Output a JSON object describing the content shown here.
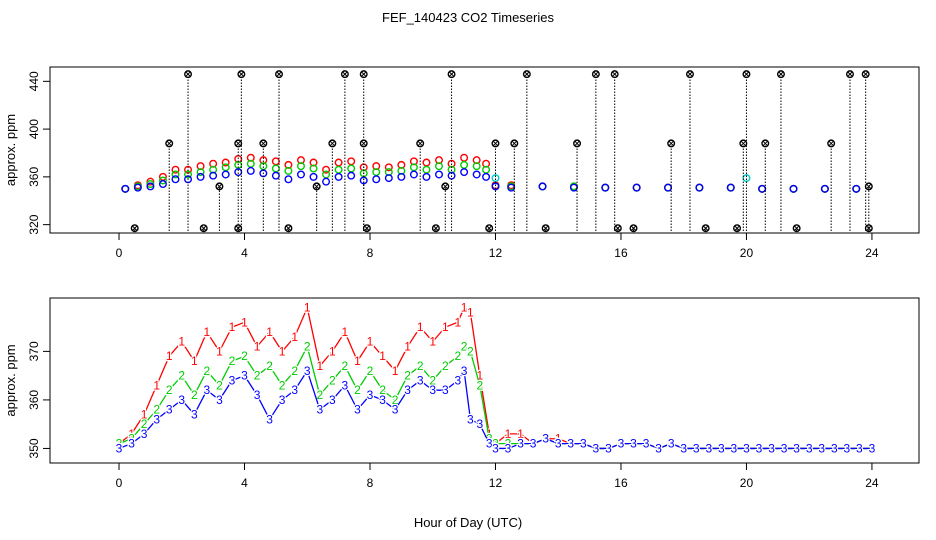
{
  "chart_data": {
    "title": "FEF_140423  CO2 Timeseries",
    "xlabel": "Hour of Day (UTC)",
    "xlim": [
      -2.2,
      25.5
    ],
    "xticks": [
      0,
      4,
      8,
      12,
      16,
      20,
      24
    ],
    "panels": [
      {
        "type": "scatter",
        "ylabel": "approx. ppm",
        "ylim": [
          313,
          452
        ],
        "yticks": [
          320,
          360,
          400,
          440
        ],
        "series": [
          {
            "color": "#ff0000",
            "marker": "circle",
            "x": [
              0.2,
              0.6,
              1.0,
              1.4,
              1.8,
              2.2,
              2.6,
              3.0,
              3.4,
              3.8,
              4.2,
              4.6,
              5.0,
              5.4,
              5.8,
              6.2,
              6.6,
              7.0,
              7.4,
              7.8,
              8.2,
              8.6,
              9.0,
              9.4,
              9.8,
              10.2,
              10.6,
              11.0,
              11.4,
              11.7,
              12.0,
              12.5,
              13.5,
              14.5,
              15.5,
              16.5,
              17.5,
              18.5,
              19.5,
              20.5,
              21.5,
              22.5,
              23.5
            ],
            "y": [
              350,
              353,
              356,
              360,
              366,
              366,
              369,
              371,
              372,
              375,
              376,
              374,
              373,
              370,
              374,
              372,
              366,
              372,
              373,
              368,
              369,
              368,
              370,
              373,
              372,
              374,
              371,
              376,
              374,
              371,
              353,
              353,
              352,
              352,
              351,
              351,
              351,
              351,
              351,
              350,
              350,
              350,
              350
            ]
          },
          {
            "color": "#00cc00",
            "marker": "circle",
            "x": [
              0.2,
              0.6,
              1.0,
              1.4,
              1.8,
              2.2,
              2.6,
              3.0,
              3.4,
              3.8,
              4.2,
              4.6,
              5.0,
              5.4,
              5.8,
              6.2,
              6.6,
              7.0,
              7.4,
              7.8,
              8.2,
              8.6,
              9.0,
              9.4,
              9.8,
              10.2,
              10.6,
              11.0,
              11.4,
              11.7,
              12.0,
              12.5,
              13.5,
              14.5,
              15.5,
              16.5,
              17.5,
              18.5,
              19.5,
              20.5,
              21.5,
              22.5,
              23.5
            ],
            "y": [
              350,
              352,
              354,
              357,
              362,
              362,
              364,
              366,
              368,
              370,
              371,
              369,
              367,
              365,
              369,
              367,
              362,
              366,
              367,
              363,
              364,
              364,
              365,
              368,
              366,
              369,
              366,
              370,
              369,
              366,
              352,
              352,
              352,
              352,
              351,
              351,
              351,
              351,
              351,
              350,
              350,
              350,
              350
            ]
          },
          {
            "color": "#0000ff",
            "marker": "circle",
            "x": [
              0.2,
              0.6,
              1.0,
              1.4,
              1.8,
              2.2,
              2.6,
              3.0,
              3.4,
              3.8,
              4.2,
              4.6,
              5.0,
              5.4,
              5.8,
              6.2,
              6.6,
              7.0,
              7.4,
              7.8,
              8.2,
              8.6,
              9.0,
              9.4,
              9.8,
              10.2,
              10.6,
              11.0,
              11.4,
              11.7,
              12.0,
              12.5,
              13.5,
              14.5,
              15.5,
              16.5,
              17.5,
              18.5,
              19.5,
              20.5,
              21.5,
              22.5,
              23.5
            ],
            "y": [
              350,
              351,
              352,
              354,
              358,
              358,
              360,
              361,
              362,
              364,
              365,
              363,
              361,
              358,
              362,
              360,
              356,
              360,
              361,
              357,
              358,
              359,
              360,
              362,
              360,
              362,
              361,
              364,
              362,
              360,
              352,
              351,
              352,
              351,
              351,
              351,
              351,
              351,
              351,
              350,
              350,
              350,
              350
            ]
          },
          {
            "color": "#00cccc",
            "marker": "circle",
            "x": [
              12.0,
              20.0
            ],
            "y": [
              359,
              359
            ]
          },
          {
            "color": "#000000",
            "marker": "circle-x",
            "x": [
              0.5,
              1.6,
              2.2,
              2.7,
              3.2,
              3.8,
              3.8,
              3.9,
              4.6,
              5.1,
              5.4,
              6.3,
              6.8,
              7.2,
              7.8,
              7.8,
              7.9,
              9.6,
              10.1,
              10.4,
              10.6,
              11.8,
              12.0,
              12.6,
              13.0,
              13.6,
              14.6,
              15.2,
              15.8,
              15.9,
              16.4,
              17.6,
              18.2,
              18.7,
              19.7,
              19.9,
              20.0,
              20.6,
              21.1,
              21.6,
              22.7,
              23.3,
              23.8,
              23.9,
              23.9
            ],
            "y": [
              317,
              388,
              446,
              317,
              352,
              317,
              388,
              446,
              388,
              446,
              317,
              352,
              388,
              446,
              446,
              388,
              317,
              388,
              317,
              352,
              446,
              317,
              388,
              388,
              446,
              317,
              388,
              446,
              446,
              317,
              317,
              388,
              446,
              317,
              317,
              388,
              446,
              388,
              446,
              317,
              388,
              446,
              446,
              352,
              317
            ]
          }
        ]
      },
      {
        "type": "line",
        "ylabel": "approx. ppm",
        "ylim": [
          347,
          381
        ],
        "yticks": [
          350,
          360,
          370
        ],
        "series": [
          {
            "name": "1",
            "color": "#ff0000",
            "x": [
              0,
              0.4,
              0.8,
              1.2,
              1.6,
              2.0,
              2.4,
              2.8,
              3.2,
              3.6,
              4.0,
              4.4,
              4.8,
              5.2,
              5.6,
              6.0,
              6.4,
              6.8,
              7.2,
              7.6,
              8.0,
              8.4,
              8.8,
              9.2,
              9.6,
              10.0,
              10.4,
              10.8,
              11.0,
              11.2,
              11.5,
              11.8,
              12.0,
              12.4,
              12.8,
              13.2,
              13.6,
              14.0,
              14.4,
              14.8,
              15.2,
              15.6,
              16.0,
              16.4,
              16.8,
              17.2,
              17.6,
              18.0,
              18.4,
              18.8,
              19.2,
              19.6,
              20.0,
              20.4,
              20.8,
              21.2,
              21.6,
              22.0,
              22.4,
              22.8,
              23.2,
              23.6,
              24.0
            ],
            "y": [
              351,
              353,
              357,
              363,
              369,
              372,
              368,
              374,
              370,
              375,
              376,
              371,
              374,
              370,
              373,
              379,
              367,
              370,
              374,
              368,
              372,
              369,
              366,
              371,
              375,
              372,
              375,
              376,
              379,
              378,
              365,
              353,
              351,
              353,
              353,
              351,
              352,
              352,
              351,
              351,
              350,
              350,
              351,
              351,
              351,
              350,
              351,
              350,
              350,
              350,
              350,
              350,
              350,
              350,
              350,
              350,
              350,
              350,
              350,
              350,
              350,
              350,
              350
            ]
          },
          {
            "name": "2",
            "color": "#00cc00",
            "x": [
              0,
              0.4,
              0.8,
              1.2,
              1.6,
              2.0,
              2.4,
              2.8,
              3.2,
              3.6,
              4.0,
              4.4,
              4.8,
              5.2,
              5.6,
              6.0,
              6.4,
              6.8,
              7.2,
              7.6,
              8.0,
              8.4,
              8.8,
              9.2,
              9.6,
              10.0,
              10.4,
              10.8,
              11.0,
              11.2,
              11.5,
              11.8,
              12.0,
              12.4,
              12.8,
              13.2,
              13.6,
              14.0,
              14.4,
              14.8,
              15.2,
              15.6,
              16.0,
              16.4,
              16.8,
              17.2,
              17.6,
              18.0,
              18.4,
              18.8,
              19.2,
              19.6,
              20.0,
              20.4,
              20.8,
              21.2,
              21.6,
              22.0,
              22.4,
              22.8,
              23.2,
              23.6,
              24.0
            ],
            "y": [
              351,
              352,
              355,
              358,
              362,
              365,
              361,
              366,
              363,
              368,
              369,
              365,
              367,
              363,
              366,
              371,
              361,
              364,
              367,
              362,
              366,
              362,
              360,
              365,
              367,
              364,
              367,
              369,
              371,
              370,
              363,
              352,
              351,
              351,
              351,
              351,
              352,
              351,
              351,
              351,
              350,
              350,
              351,
              351,
              351,
              350,
              351,
              350,
              350,
              350,
              350,
              350,
              350,
              350,
              350,
              350,
              350,
              350,
              350,
              350,
              350,
              350,
              350
            ]
          },
          {
            "name": "3",
            "color": "#0000ff",
            "x": [
              0,
              0.4,
              0.8,
              1.2,
              1.6,
              2.0,
              2.4,
              2.8,
              3.2,
              3.6,
              4.0,
              4.4,
              4.8,
              5.2,
              5.6,
              6.0,
              6.4,
              6.8,
              7.2,
              7.6,
              8.0,
              8.4,
              8.8,
              9.2,
              9.6,
              10.0,
              10.4,
              10.8,
              11.0,
              11.2,
              11.5,
              11.8,
              12.0,
              12.4,
              12.8,
              13.2,
              13.6,
              14.0,
              14.4,
              14.8,
              15.2,
              15.6,
              16.0,
              16.4,
              16.8,
              17.2,
              17.6,
              18.0,
              18.4,
              18.8,
              19.2,
              19.6,
              20.0,
              20.4,
              20.8,
              21.2,
              21.6,
              22.0,
              22.4,
              22.8,
              23.2,
              23.6,
              24.0
            ],
            "y": [
              350,
              351,
              353,
              356,
              358,
              360,
              357,
              362,
              360,
              364,
              365,
              361,
              356,
              360,
              362,
              366,
              358,
              360,
              363,
              358,
              361,
              360,
              358,
              362,
              364,
              362,
              362,
              364,
              366,
              356,
              355,
              351,
              350,
              350,
              351,
              351,
              352,
              351,
              351,
              351,
              350,
              350,
              351,
              351,
              351,
              350,
              351,
              350,
              350,
              350,
              350,
              350,
              350,
              350,
              350,
              350,
              350,
              350,
              350,
              350,
              350,
              350,
              350
            ]
          }
        ]
      }
    ]
  }
}
